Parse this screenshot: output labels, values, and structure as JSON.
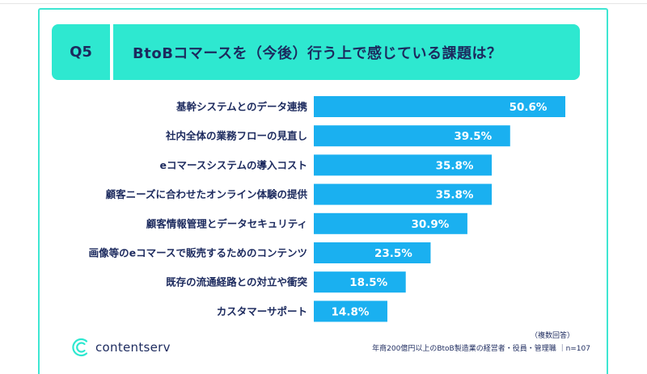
{
  "header": {
    "question_number": "Q5",
    "question_text": "BtoBコマースを（今後）行う上で感じている課題は？"
  },
  "chart_data": {
    "type": "bar",
    "orientation": "horizontal",
    "categories": [
      "基幹システムとのデータ連携",
      "社内全体の業務フローの見直し",
      "eコマースシステムの導入コスト",
      "顧客ニーズに合わせたオンライン体験の提供",
      "顧客情報管理とデータセキュリティ",
      "画像等のeコマースで販売するためのコンテンツ",
      "既存の流通経路との対立や衝突",
      "カスタマーサポート"
    ],
    "values": [
      50.6,
      39.5,
      35.8,
      35.8,
      30.9,
      23.5,
      18.5,
      14.8
    ],
    "value_labels": [
      "50.6%",
      "39.5%",
      "35.8%",
      "35.8%",
      "30.9%",
      "23.5%",
      "18.5%",
      "14.8%"
    ],
    "bar_color": "#1ab0f0",
    "title": "",
    "xlabel": "",
    "ylabel": "",
    "xlim": [
      0,
      100
    ],
    "grid": false
  },
  "footer": {
    "brand": "contentserv",
    "note_multiple": "（複数回答）",
    "note_sample": "年商200億円以上のBtoB製造業の経営者・役員・管理職 ｜n=107"
  },
  "colors": {
    "accent": "#2ee8d0",
    "border": "#3ee6d2",
    "text": "#1c2a5e",
    "bar": "#1ab0f0"
  }
}
